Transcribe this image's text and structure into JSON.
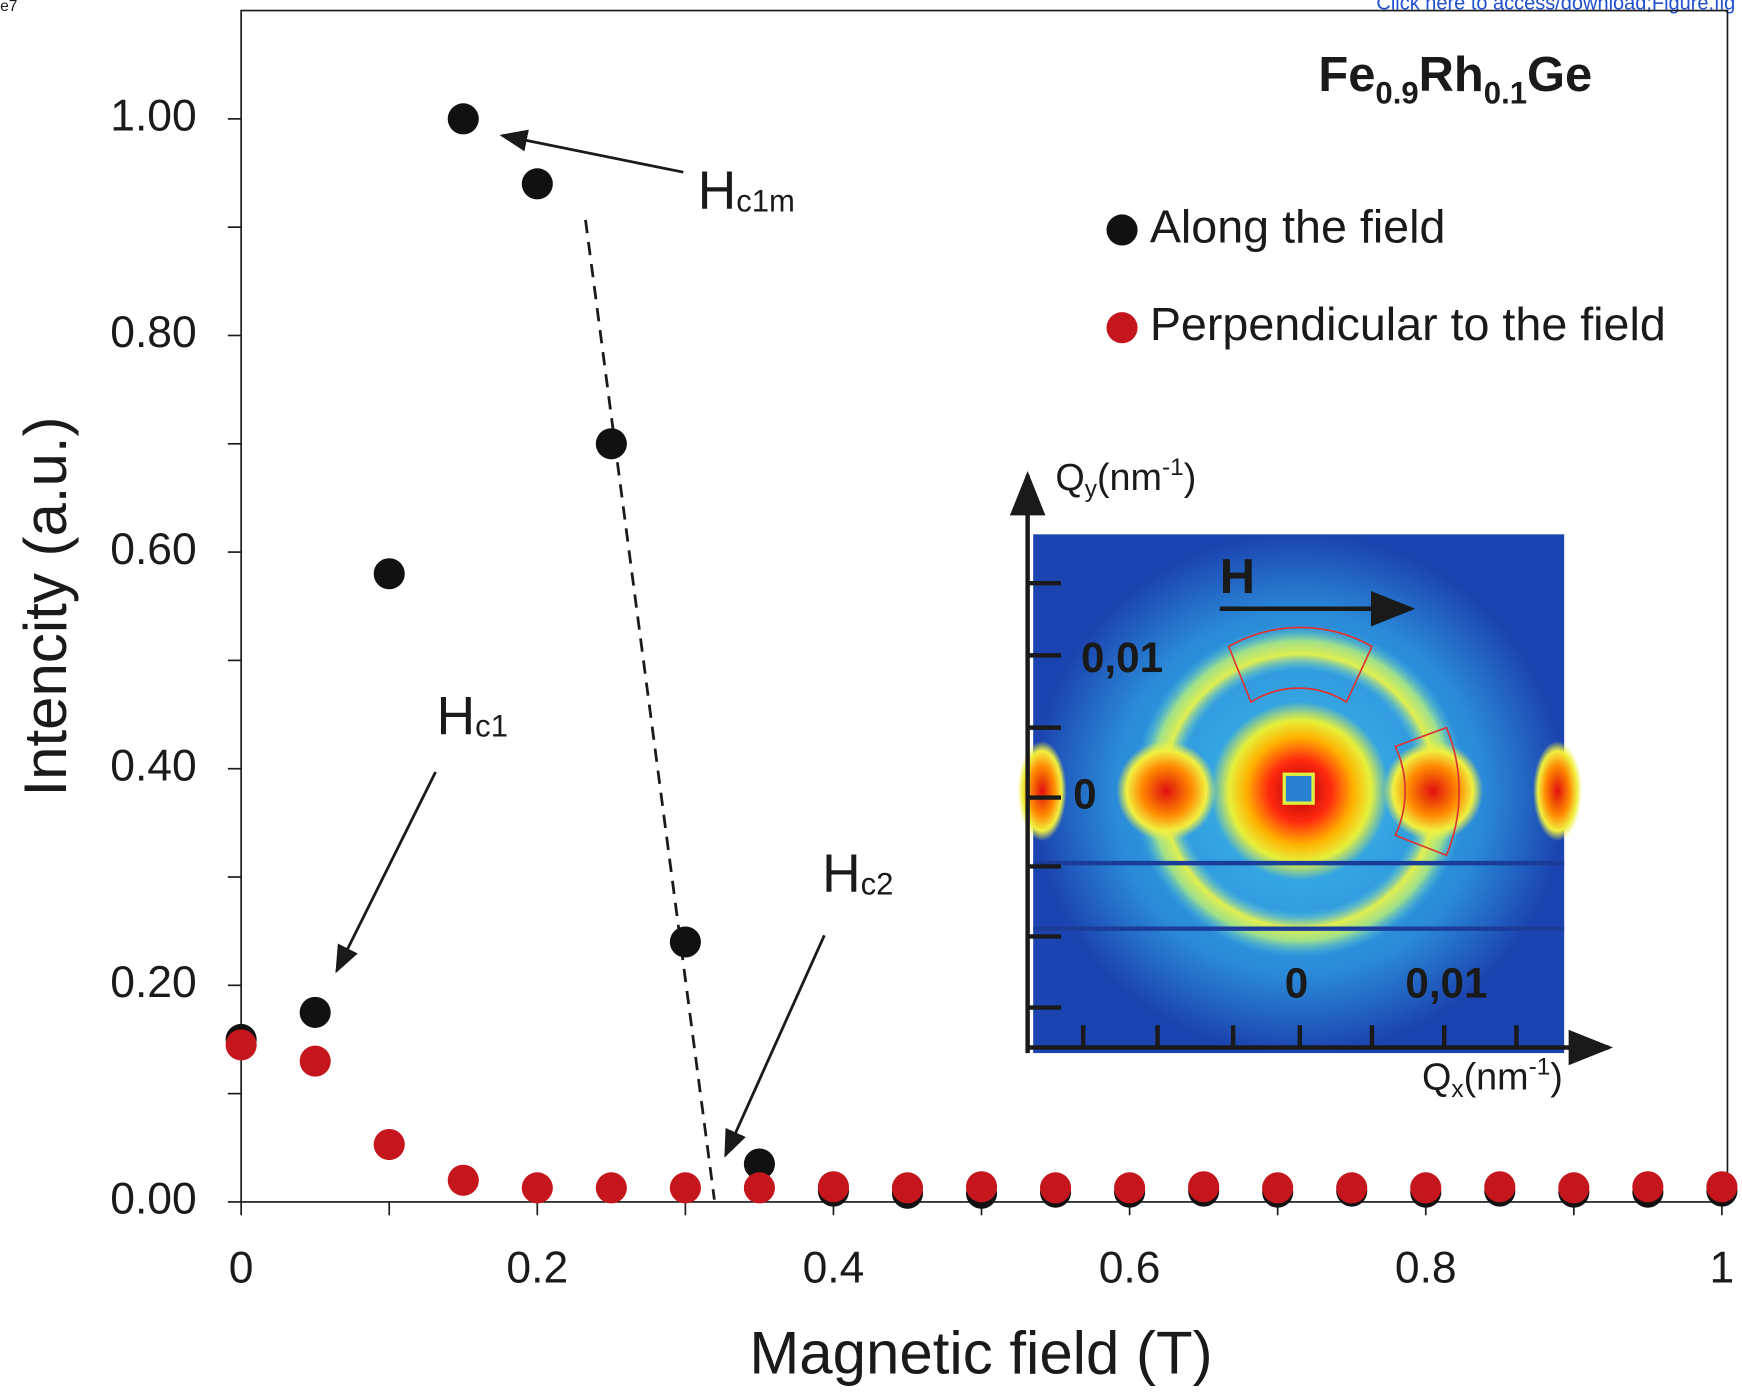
{
  "chart_data": {
    "type": "scatter",
    "corner_text": "e7",
    "link_text": "Click here to access/download;Figure.fig",
    "title": {
      "parts": [
        "Fe",
        "0.9",
        "Rh",
        "0.1",
        "Ge"
      ]
    },
    "xlabel": "Magnetic field (T)",
    "ylabel": "Intencity (a.u.)",
    "xlim": [
      0,
      1
    ],
    "ylim": [
      0,
      1.1
    ],
    "xticks": [
      0,
      0.2,
      0.4,
      0.6,
      0.8,
      1
    ],
    "xminorticks": [
      0.1,
      0.3,
      0.5,
      0.7,
      0.9
    ],
    "yticks": [
      {
        "value": 0,
        "label": "0.00"
      },
      {
        "value": 0.2,
        "label": "0.20"
      },
      {
        "value": 0.4,
        "label": "0.40"
      },
      {
        "value": 0.6,
        "label": "0.60"
      },
      {
        "value": 0.8,
        "label": "0.80"
      },
      {
        "value": 1.0,
        "label": "1.00"
      }
    ],
    "yminorticks": [
      0.1,
      0.3,
      0.5,
      0.7,
      0.9
    ],
    "x": [
      0,
      0.05,
      0.1,
      0.15,
      0.2,
      0.25,
      0.3,
      0.35,
      0.4,
      0.45,
      0.5,
      0.55,
      0.6,
      0.65,
      0.7,
      0.75,
      0.8,
      0.85,
      0.9,
      0.95,
      1
    ],
    "series": [
      {
        "name": "Along the field",
        "color": "#111111",
        "values": [
          0.15,
          0.175,
          0.58,
          1.0,
          0.94,
          0.7,
          0.24,
          0.035,
          0.01,
          0.008,
          0.008,
          0.009,
          0.009,
          0.01,
          0.009,
          0.01,
          0.009,
          0.01,
          0.009,
          0.009,
          0.01
        ]
      },
      {
        "name": "Perpendicular to the field",
        "color": "#c4161c",
        "values": [
          0.145,
          0.13,
          0.053,
          0.02,
          0.013,
          0.013,
          0.013,
          0.013,
          0.014,
          0.013,
          0.014,
          0.013,
          0.013,
          0.014,
          0.013,
          0.013,
          0.013,
          0.014,
          0.013,
          0.014,
          0.014
        ]
      }
    ],
    "legend": "upper right",
    "annotations": [
      {
        "text": "H",
        "subscript": "c1m"
      },
      {
        "text": "H",
        "subscript": "c1"
      },
      {
        "text": "H",
        "subscript": "c2"
      }
    ],
    "inset": {
      "y_axis": [
        "Q",
        "y",
        "(nm",
        "-1",
        ")"
      ],
      "x_axis": [
        "Q",
        "x",
        "(nm",
        "-1",
        ")"
      ],
      "field": "H",
      "y_labels": [
        "0,01",
        "0"
      ],
      "x_labels": [
        "0",
        "0,01"
      ]
    }
  }
}
